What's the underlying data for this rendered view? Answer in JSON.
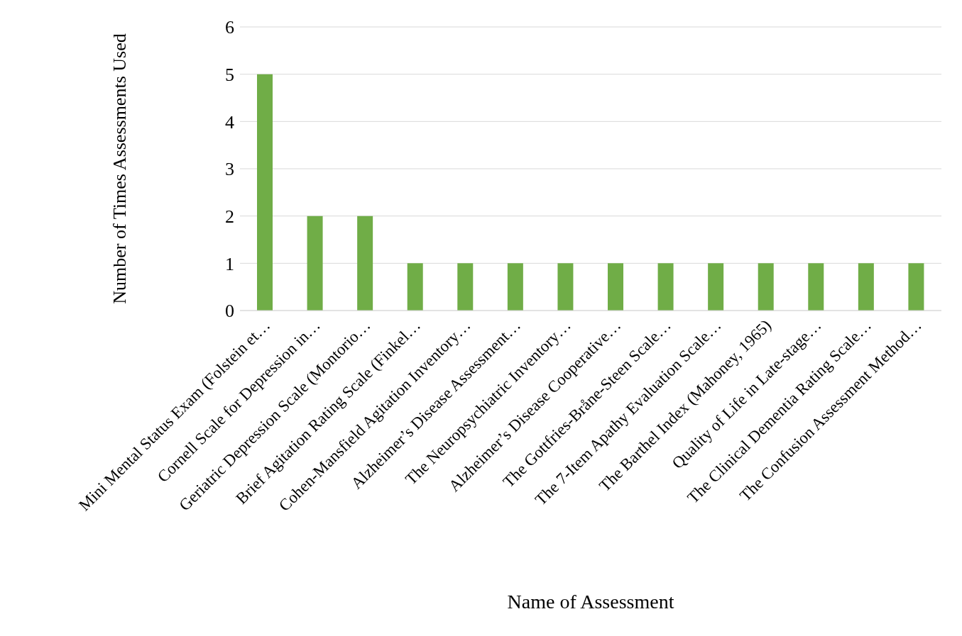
{
  "chart_data": {
    "type": "bar",
    "xlabel": "Name of Assessment",
    "ylabel": "Number of Times Assessments Used",
    "categories": [
      "Mini Mental Status Exam (Folstein et…",
      "Cornell Scale for Depression in…",
      "Geriatric Depression Scale (Montorio…",
      "Brief Agitation Rating Scale (Finkel…",
      "Cohen-Mansfield Agitation Inventory…",
      "Alzheimer’s Disease Assessment…",
      "The Neuropsychiatric Inventory…",
      "Alzheimer’s Disease Cooperative…",
      "The Gottfries-Bråne-Steen Scale…",
      "The 7-Item Apathy Evaluation Scale…",
      "The Barthel Index (Mahoney, 1965)",
      "Quality of Life in Late-stage…",
      "The Clinical Dementia Rating Scale…",
      "The Confusion Assessment Method…"
    ],
    "values": [
      5,
      2,
      2,
      1,
      1,
      1,
      1,
      1,
      1,
      1,
      1,
      1,
      1,
      1
    ],
    "color": "#70ad47",
    "ylim": [
      0,
      6
    ],
    "yticks": [
      0,
      1,
      2,
      3,
      4,
      5,
      6
    ],
    "grid": "y"
  }
}
